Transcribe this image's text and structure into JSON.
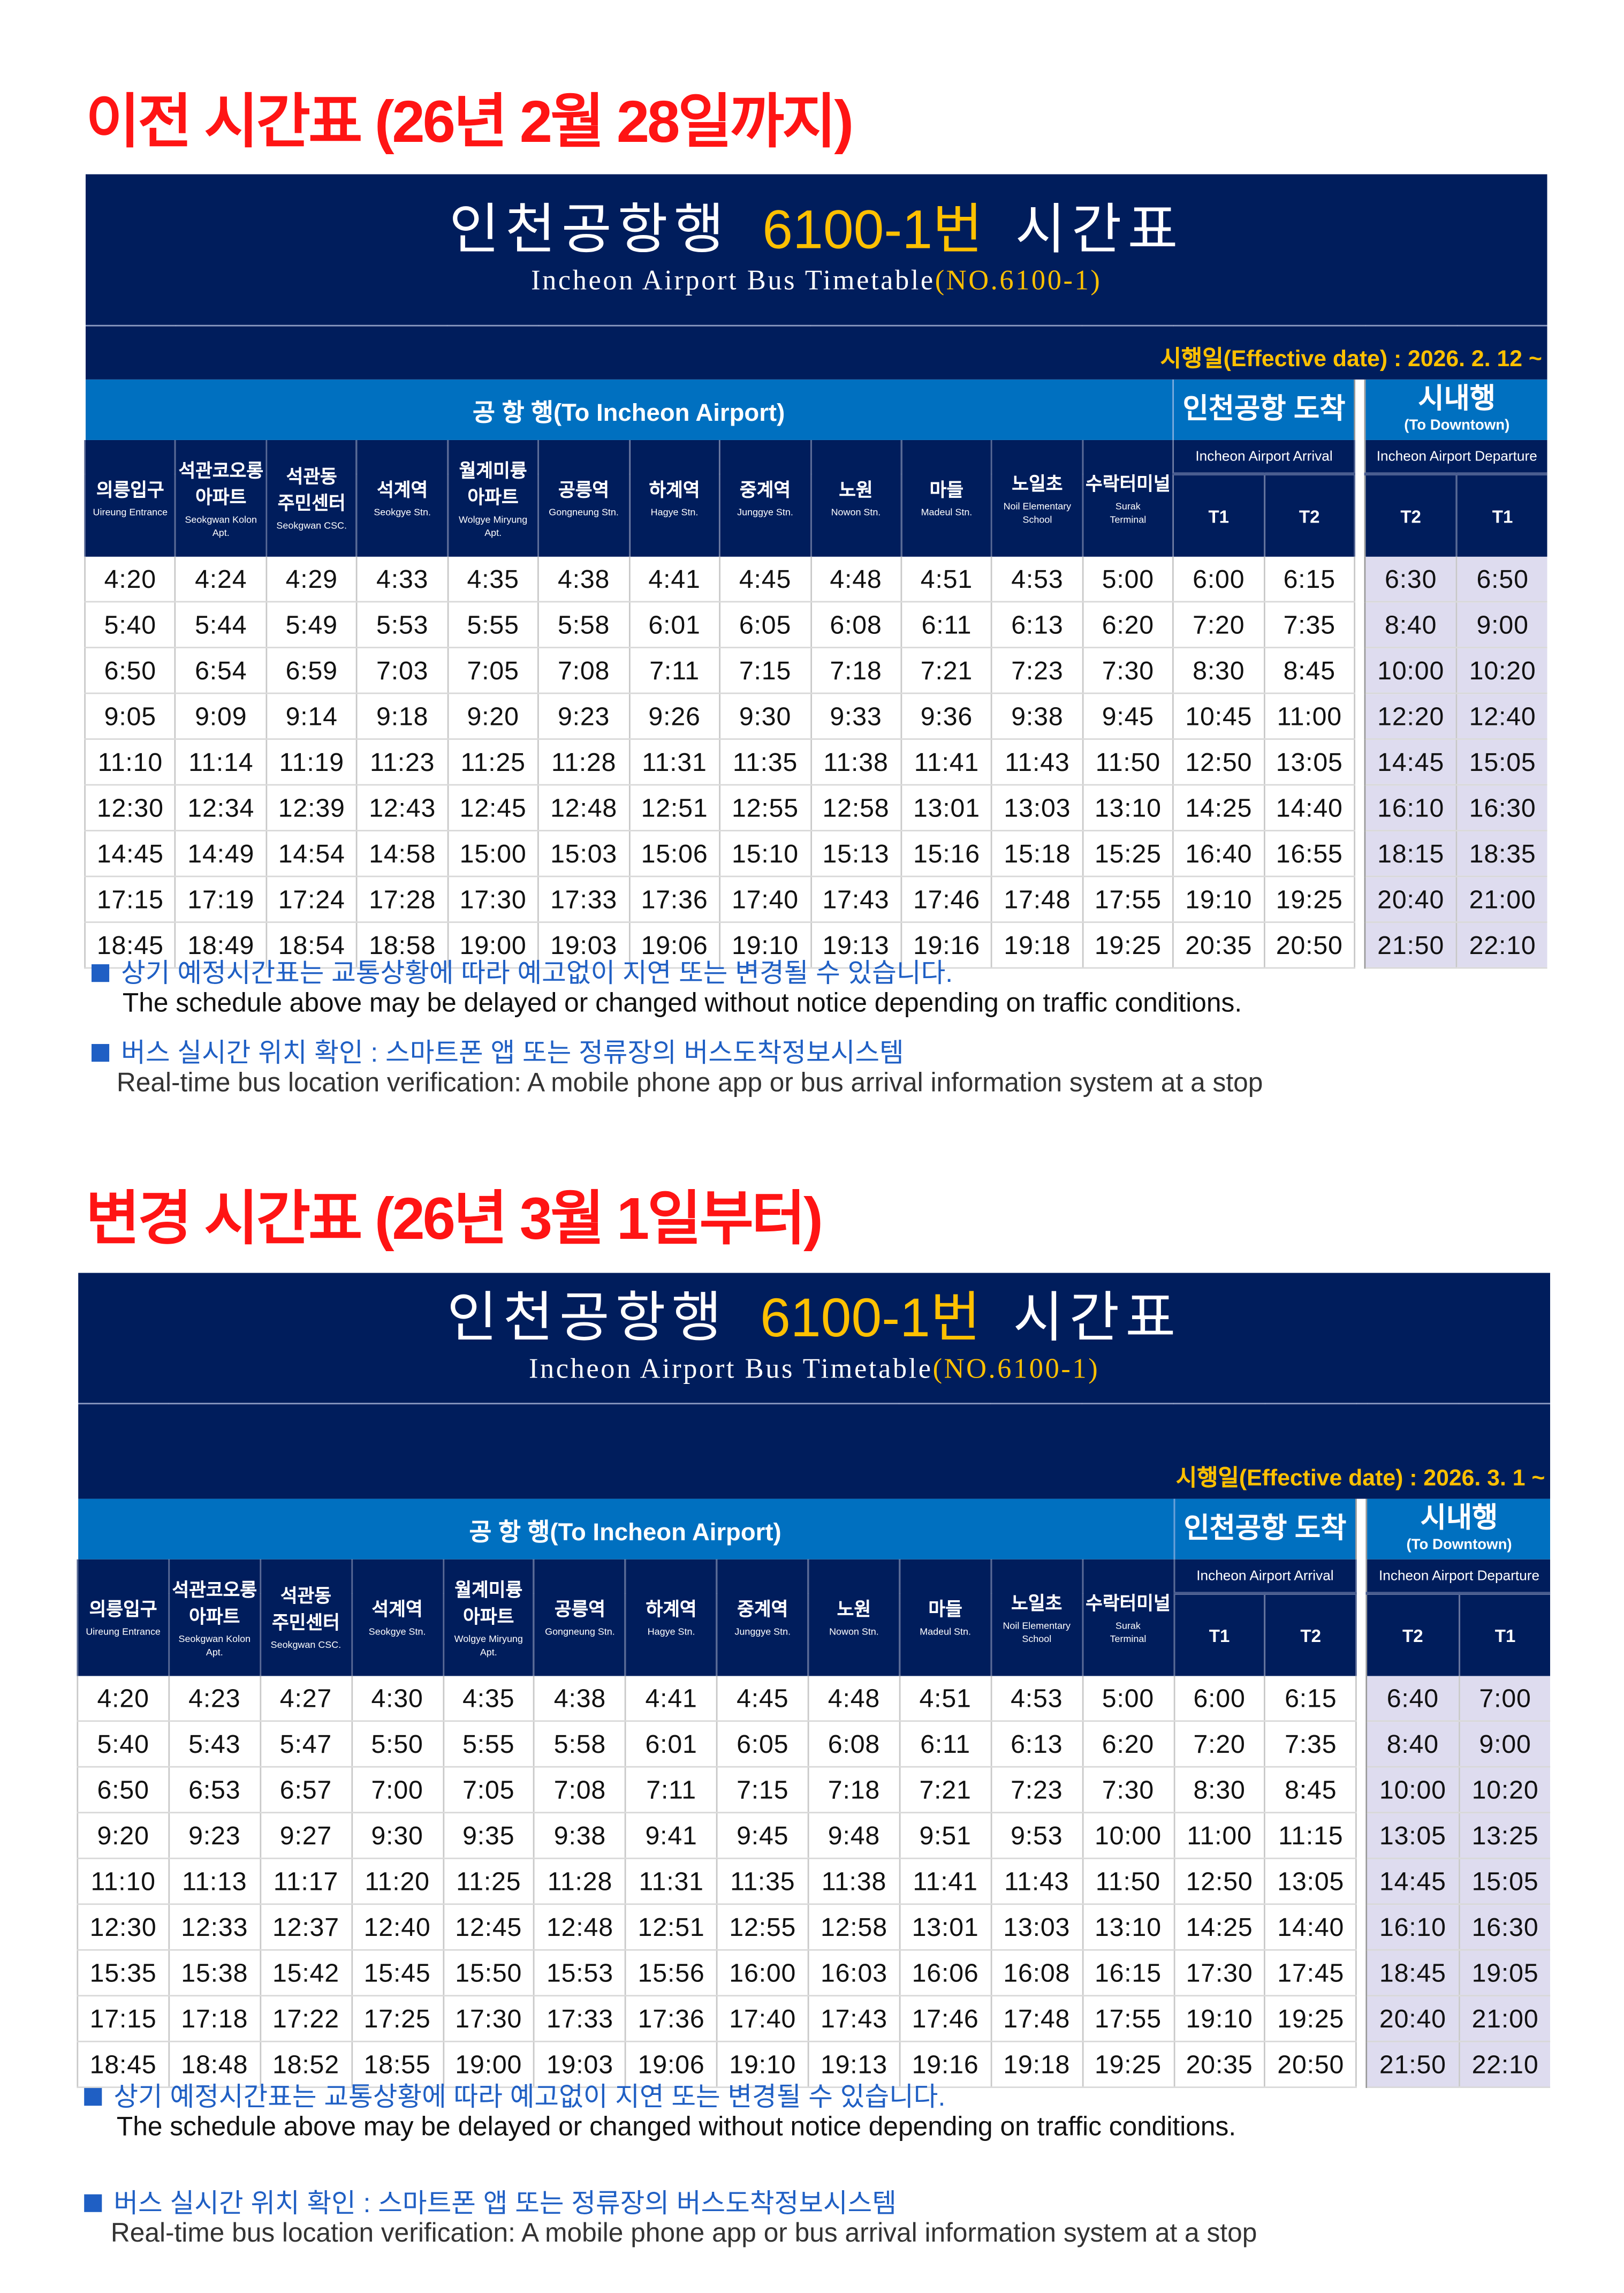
{
  "colors": {
    "navy": "#001d5c",
    "blue": "#0070c0",
    "yellow": "#ffc000",
    "heading_red": "#ff1414",
    "note_blue": "#1f5fc4",
    "downtown_bg": "#dedcef"
  },
  "header": {
    "group_to_airport": "공 항 행(To Incheon Airport)",
    "group_arrival": "인천공항 도착",
    "group_downtown": "시내행",
    "group_downtown_en": "(To Downtown)",
    "arrival_sub": "Incheon Airport Arrival",
    "departure_sub": "Incheon Airport Departure",
    "arrival_terminals": [
      "T1",
      "T2"
    ],
    "departure_terminals": [
      "T2",
      "T1"
    ],
    "stations": [
      {
        "ko": "의릉입구",
        "en": "Uireung Entrance"
      },
      {
        "ko": "석관코오롱\n아파트",
        "en": "Seokgwan Kolon\nApt."
      },
      {
        "ko": "석관동\n주민센터",
        "en": "Seokgwan CSC."
      },
      {
        "ko": "석계역",
        "en": "Seokgye Stn."
      },
      {
        "ko": "월계미륭\n아파트",
        "en": "Wolgye Miryung\nApt."
      },
      {
        "ko": "공릉역",
        "en": "Gongneung Stn."
      },
      {
        "ko": "하계역",
        "en": "Hagye Stn."
      },
      {
        "ko": "중계역",
        "en": "Junggye Stn."
      },
      {
        "ko": "노원",
        "en": "Nowon Stn."
      },
      {
        "ko": "마들",
        "en": "Madeul Stn."
      },
      {
        "ko": "노일초",
        "en": "Noil Elementary\nSchool"
      },
      {
        "ko": "수락터미널",
        "en": "Surak\nTerminal"
      }
    ]
  },
  "timetables": [
    {
      "heading": "이전 시간표 (26년 2월 28일까지)",
      "title_ko": "인천공항행",
      "title_route": "6100-1번",
      "title_suffix": "시간표",
      "title_en": "Incheon Airport Bus Timetable",
      "title_en_no": "(NO.6100-1)",
      "effective_date": "시행일(Effective date) : 2026. 2. 12 ~",
      "rows": [
        [
          "4:20",
          "4:24",
          "4:29",
          "4:33",
          "4:35",
          "4:38",
          "4:41",
          "4:45",
          "4:48",
          "4:51",
          "4:53",
          "5:00",
          "6:00",
          "6:15",
          "6:30",
          "6:50"
        ],
        [
          "5:40",
          "5:44",
          "5:49",
          "5:53",
          "5:55",
          "5:58",
          "6:01",
          "6:05",
          "6:08",
          "6:11",
          "6:13",
          "6:20",
          "7:20",
          "7:35",
          "8:40",
          "9:00"
        ],
        [
          "6:50",
          "6:54",
          "6:59",
          "7:03",
          "7:05",
          "7:08",
          "7:11",
          "7:15",
          "7:18",
          "7:21",
          "7:23",
          "7:30",
          "8:30",
          "8:45",
          "10:00",
          "10:20"
        ],
        [
          "9:05",
          "9:09",
          "9:14",
          "9:18",
          "9:20",
          "9:23",
          "9:26",
          "9:30",
          "9:33",
          "9:36",
          "9:38",
          "9:45",
          "10:45",
          "11:00",
          "12:20",
          "12:40"
        ],
        [
          "11:10",
          "11:14",
          "11:19",
          "11:23",
          "11:25",
          "11:28",
          "11:31",
          "11:35",
          "11:38",
          "11:41",
          "11:43",
          "11:50",
          "12:50",
          "13:05",
          "14:45",
          "15:05"
        ],
        [
          "12:30",
          "12:34",
          "12:39",
          "12:43",
          "12:45",
          "12:48",
          "12:51",
          "12:55",
          "12:58",
          "13:01",
          "13:03",
          "13:10",
          "14:25",
          "14:40",
          "16:10",
          "16:30"
        ],
        [
          "14:45",
          "14:49",
          "14:54",
          "14:58",
          "15:00",
          "15:03",
          "15:06",
          "15:10",
          "15:13",
          "15:16",
          "15:18",
          "15:25",
          "16:40",
          "16:55",
          "18:15",
          "18:35"
        ],
        [
          "17:15",
          "17:19",
          "17:24",
          "17:28",
          "17:30",
          "17:33",
          "17:36",
          "17:40",
          "17:43",
          "17:46",
          "17:48",
          "17:55",
          "19:10",
          "19:25",
          "20:40",
          "21:00"
        ],
        [
          "18:45",
          "18:49",
          "18:54",
          "18:58",
          "19:00",
          "19:03",
          "19:06",
          "19:10",
          "19:13",
          "19:16",
          "19:18",
          "19:25",
          "20:35",
          "20:50",
          "21:50",
          "22:10"
        ]
      ],
      "notes": {
        "delay_ko": "상기 예정시간표는 교통상황에 따라 예고없이 지연 또는 변경될 수 있습니다.",
        "delay_en": "The schedule above may be delayed or changed without notice depending on traffic conditions.",
        "realtime_ko": "버스 실시간 위치 확인 : 스마트폰 앱 또는 정류장의 버스도착정보시스템",
        "realtime_en": "Real-time bus location verification: A mobile phone app or bus arrival information system at a stop"
      }
    },
    {
      "heading": "변경 시간표 (26년 3월 1일부터)",
      "title_ko": "인천공항행",
      "title_route": "6100-1번",
      "title_suffix": "시간표",
      "title_en": "Incheon Airport Bus Timetable",
      "title_en_no": "(NO.6100-1)",
      "effective_date": "시행일(Effective date) : 2026. 3. 1 ~",
      "rows": [
        [
          "4:20",
          "4:23",
          "4:27",
          "4:30",
          "4:35",
          "4:38",
          "4:41",
          "4:45",
          "4:48",
          "4:51",
          "4:53",
          "5:00",
          "6:00",
          "6:15",
          "6:40",
          "7:00"
        ],
        [
          "5:40",
          "5:43",
          "5:47",
          "5:50",
          "5:55",
          "5:58",
          "6:01",
          "6:05",
          "6:08",
          "6:11",
          "6:13",
          "6:20",
          "7:20",
          "7:35",
          "8:40",
          "9:00"
        ],
        [
          "6:50",
          "6:53",
          "6:57",
          "7:00",
          "7:05",
          "7:08",
          "7:11",
          "7:15",
          "7:18",
          "7:21",
          "7:23",
          "7:30",
          "8:30",
          "8:45",
          "10:00",
          "10:20"
        ],
        [
          "9:20",
          "9:23",
          "9:27",
          "9:30",
          "9:35",
          "9:38",
          "9:41",
          "9:45",
          "9:48",
          "9:51",
          "9:53",
          "10:00",
          "11:00",
          "11:15",
          "13:05",
          "13:25"
        ],
        [
          "11:10",
          "11:13",
          "11:17",
          "11:20",
          "11:25",
          "11:28",
          "11:31",
          "11:35",
          "11:38",
          "11:41",
          "11:43",
          "11:50",
          "12:50",
          "13:05",
          "14:45",
          "15:05"
        ],
        [
          "12:30",
          "12:33",
          "12:37",
          "12:40",
          "12:45",
          "12:48",
          "12:51",
          "12:55",
          "12:58",
          "13:01",
          "13:03",
          "13:10",
          "14:25",
          "14:40",
          "16:10",
          "16:30"
        ],
        [
          "15:35",
          "15:38",
          "15:42",
          "15:45",
          "15:50",
          "15:53",
          "15:56",
          "16:00",
          "16:03",
          "16:06",
          "16:08",
          "16:15",
          "17:30",
          "17:45",
          "18:45",
          "19:05"
        ],
        [
          "17:15",
          "17:18",
          "17:22",
          "17:25",
          "17:30",
          "17:33",
          "17:36",
          "17:40",
          "17:43",
          "17:46",
          "17:48",
          "17:55",
          "19:10",
          "19:25",
          "20:40",
          "21:00"
        ],
        [
          "18:45",
          "18:48",
          "18:52",
          "18:55",
          "19:00",
          "19:03",
          "19:06",
          "19:10",
          "19:13",
          "19:16",
          "19:18",
          "19:25",
          "20:35",
          "20:50",
          "21:50",
          "22:10"
        ]
      ],
      "notes": {
        "delay_ko": "상기 예정시간표는 교통상황에 따라 예고없이 지연 또는 변경될 수 있습니다.",
        "delay_en": "The schedule above may be delayed or changed without notice depending on traffic conditions.",
        "realtime_ko": "버스 실시간 위치 확인 : 스마트폰 앱 또는 정류장의 버스도착정보시스템",
        "realtime_en": "Real-time bus location verification: A mobile phone app or bus arrival information system at a stop"
      }
    }
  ]
}
